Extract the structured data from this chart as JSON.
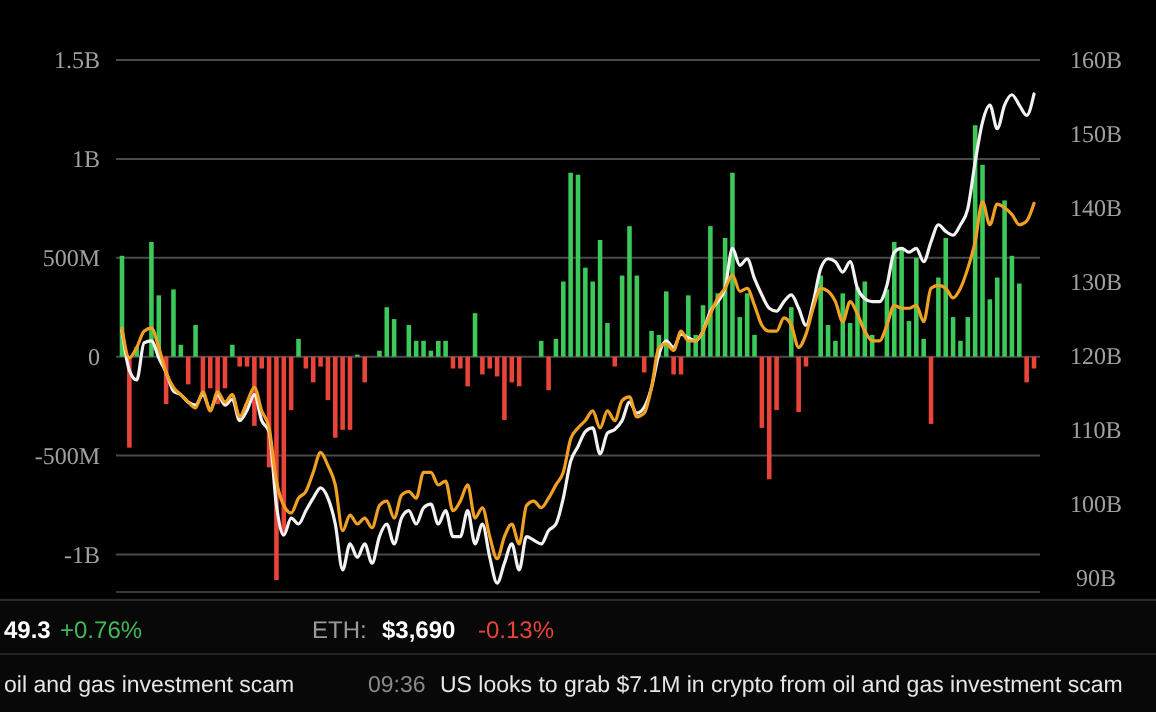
{
  "chart_data": {
    "type": "bar",
    "grid": "y",
    "categories": [
      null,
      null,
      null,
      null,
      null,
      null,
      null,
      null,
      null,
      null,
      null,
      null,
      null,
      null,
      null,
      null,
      null,
      null,
      null,
      null,
      null,
      null,
      null,
      null,
      null,
      null,
      null,
      null,
      null,
      null,
      null,
      null,
      null,
      null,
      null,
      null,
      null,
      null,
      null,
      null,
      null,
      null,
      null,
      null,
      null,
      null,
      null,
      null,
      null,
      null,
      null,
      null,
      null,
      null,
      null,
      null,
      null,
      null,
      null,
      null,
      null,
      null,
      null,
      null,
      null,
      null,
      null,
      null,
      null,
      null,
      null,
      null,
      null,
      null,
      null,
      null,
      null,
      null,
      null,
      null,
      null,
      null,
      null,
      null,
      null,
      null,
      null,
      null,
      null,
      null,
      null,
      null,
      null,
      null,
      null,
      null,
      null,
      null,
      null,
      null,
      null,
      null,
      null,
      null,
      null,
      null,
      null,
      null,
      null,
      null,
      null,
      null,
      null,
      null,
      null,
      null,
      null,
      null,
      null,
      null,
      null,
      null,
      null,
      null,
      null
    ],
    "ylim": [
      -1190000000.0,
      1500000000.0
    ],
    "yticks": [
      {
        "value": -1000000000.0,
        "label": "-1B"
      },
      {
        "value": -500000000.0,
        "label": "-500M"
      },
      0,
      {
        "value": 500000000.0,
        "label": "500M"
      },
      {
        "value": 1000000000.0,
        "label": "1B"
      },
      {
        "value": 1500000000.0,
        "label": "1.5B"
      }
    ],
    "y2lim": [
      88,
      160
    ],
    "y2ticks": [
      {
        "value": 90,
        "label": "90B"
      },
      {
        "value": 100,
        "label": "100B"
      },
      {
        "value": 110,
        "label": "110B"
      },
      {
        "value": 120,
        "label": "120B"
      },
      {
        "value": 130,
        "label": "130B"
      },
      {
        "value": 140,
        "label": "140B"
      },
      {
        "value": 150,
        "label": "150B"
      },
      {
        "value": 160,
        "label": "160B"
      }
    ],
    "series": [
      {
        "values": [
          510000000.0,
          -460000000.0,
          50000000.0,
          0,
          580000000.0,
          310000000.0,
          -240000000.0,
          340000000.0,
          60000000.0,
          -140000000.0,
          160000000.0,
          -190000000.0,
          -160000000.0,
          -240000000.0,
          -160000000.0,
          60000000.0,
          -50000000.0,
          -50000000.0,
          -350000000.0,
          -60000000.0,
          -560000000.0,
          -1130000000.0,
          -900000000.0,
          -270000000.0,
          90000000.0,
          -60000000.0,
          -130000000.0,
          -50000000.0,
          -220000000.0,
          -410000000.0,
          -370000000.0,
          -370000000.0,
          10000000.0,
          -130000000.0,
          0,
          30000000.0,
          250000000.0,
          190000000.0,
          0,
          160000000.0,
          80000000.0,
          80000000.0,
          30000000.0,
          80000000.0,
          80000000.0,
          -60000000.0,
          -60000000.0,
          -150000000.0,
          220000000.0,
          -90000000.0,
          -60000000.0,
          -100000000.0,
          -320000000.0,
          -130000000.0,
          -150000000.0,
          0,
          0,
          80000000.0,
          -170000000.0,
          90000000.0,
          380000000.0,
          930000000.0,
          920000000.0,
          450000000.0,
          380000000.0,
          590000000.0,
          170000000.0,
          -50000000.0,
          410000000.0,
          660000000.0,
          410000000.0,
          -80000000.0,
          130000000.0,
          110000000.0,
          330000000.0,
          -90000000.0,
          -90000000.0,
          310000000.0,
          110000000.0,
          260000000.0,
          660000000.0,
          320000000.0,
          600000000.0,
          930000000.0,
          200000000.0,
          320000000.0,
          110000000.0,
          -360000000.0,
          -620000000.0,
          -270000000.0,
          0,
          250000000.0,
          -280000000.0,
          -50000000.0,
          0,
          410000000.0,
          160000000.0,
          80000000.0,
          320000000.0,
          170000000.0,
          350000000.0,
          380000000.0,
          110000000.0,
          0,
          340000000.0,
          580000000.0,
          540000000.0,
          180000000.0,
          500000000.0,
          90000000.0,
          -340000000.0,
          400000000.0,
          600000000.0,
          200000000.0,
          80000000.0,
          200000000.0,
          1170000000.0,
          970000000.0,
          290000000.0,
          400000000.0,
          790000000.0,
          510000000.0,
          370000000.0,
          -130000000.0,
          -60000000.0
        ],
        "colors": [
          "#3dc85a",
          "#e8443a",
          "#3dc85a",
          "#3dc85a",
          "#3dc85a",
          "#3dc85a",
          "#e8443a",
          "#3dc85a",
          "#3dc85a",
          "#e8443a",
          "#3dc85a",
          "#e8443a",
          "#e8443a",
          "#e8443a",
          "#e8443a",
          "#3dc85a",
          "#e8443a",
          "#e8443a",
          "#e8443a",
          "#e8443a",
          "#e8443a",
          "#e8443a",
          "#e8443a",
          "#e8443a",
          "#3dc85a",
          "#e8443a",
          "#e8443a",
          "#e8443a",
          "#e8443a",
          "#e8443a",
          "#e8443a",
          "#e8443a",
          "#3dc85a",
          "#e8443a",
          "#3dc85a",
          "#3dc85a",
          "#3dc85a",
          "#3dc85a",
          "#3dc85a",
          "#3dc85a",
          "#3dc85a",
          "#3dc85a",
          "#3dc85a",
          "#3dc85a",
          "#3dc85a",
          "#e8443a",
          "#e8443a",
          "#e8443a",
          "#3dc85a",
          "#e8443a",
          "#e8443a",
          "#e8443a",
          "#e8443a",
          "#e8443a",
          "#e8443a",
          "#3dc85a",
          "#3dc85a",
          "#3dc85a",
          "#e8443a",
          "#3dc85a",
          "#3dc85a",
          "#3dc85a",
          "#3dc85a",
          "#3dc85a",
          "#3dc85a",
          "#3dc85a",
          "#3dc85a",
          "#e8443a",
          "#3dc85a",
          "#3dc85a",
          "#3dc85a",
          "#e8443a",
          "#3dc85a",
          "#3dc85a",
          "#3dc85a",
          "#e8443a",
          "#e8443a",
          "#3dc85a",
          "#3dc85a",
          "#3dc85a",
          "#3dc85a",
          "#3dc85a",
          "#3dc85a",
          "#3dc85a",
          "#3dc85a",
          "#3dc85a",
          "#3dc85a",
          "#e8443a",
          "#e8443a",
          "#e8443a",
          "#3dc85a",
          "#3dc85a",
          "#e8443a",
          "#e8443a",
          "#3dc85a",
          "#3dc85a",
          "#3dc85a",
          "#3dc85a",
          "#3dc85a",
          "#3dc85a",
          "#3dc85a",
          "#3dc85a",
          "#3dc85a",
          "#3dc85a",
          "#3dc85a",
          "#3dc85a",
          "#3dc85a",
          "#3dc85a",
          "#3dc85a",
          "#3dc85a",
          "#e8443a",
          "#3dc85a",
          "#3dc85a",
          "#3dc85a",
          "#3dc85a",
          "#3dc85a",
          "#3dc85a",
          "#3dc85a",
          "#3dc85a",
          "#3dc85a",
          "#3dc85a",
          "#3dc85a",
          "#3dc85a",
          "#e8443a",
          "#e8443a"
        ]
      },
      {
        "type": "line",
        "axis": "y2",
        "color": "#f2f2f2",
        "values": [
          123.4,
          118,
          116.7,
          121.7,
          122,
          119.7,
          117.7,
          115.2,
          114.7,
          113.7,
          113.3,
          114.7,
          112.7,
          114.7,
          113.3,
          114.1,
          111.2,
          112.6,
          114.7,
          111.2,
          109.7,
          99.7,
          95.7,
          98,
          97.2,
          99,
          100.7,
          102.1,
          100.7,
          97.2,
          91,
          94.5,
          92.7,
          94.5,
          91.9,
          95.5,
          97.2,
          94.5,
          98,
          99,
          97.2,
          99.4,
          99.9,
          97.2,
          99,
          95.5,
          95.5,
          99,
          94.5,
          97.2,
          92.7,
          89.2,
          91.9,
          94.5,
          91,
          95.5,
          95,
          94.5,
          96.3,
          97.2,
          100.7,
          105.7,
          107.7,
          109.7,
          110.2,
          106.7,
          109.5,
          110,
          111.2,
          113.7,
          112.2,
          113,
          115.7,
          120.2,
          122,
          121.1,
          122.9,
          122.4,
          122,
          123.3,
          126,
          127.3,
          129.1,
          134.5,
          132.2,
          133.1,
          130.4,
          128.2,
          126.4,
          126,
          127.3,
          128.2,
          126.4,
          124.1,
          127.3,
          131.8,
          133.1,
          132.7,
          131.3,
          132.7,
          129.1,
          127.7,
          127.3,
          127.3,
          129.5,
          134,
          134.5,
          134,
          134.5,
          132.7,
          135.4,
          137.7,
          136.8,
          136.3,
          137.7,
          139.9,
          146.2,
          151.6,
          153.9,
          150.7,
          153.9,
          155.3,
          153.9,
          152.5,
          155.4
        ]
      },
      {
        "type": "line",
        "axis": "y2",
        "color": "#f0a022",
        "values": [
          123.7,
          119.7,
          121.1,
          123.3,
          123.7,
          121.1,
          117.7,
          115.7,
          114.7,
          113.7,
          112.9,
          115.1,
          112.5,
          115.1,
          113.7,
          114.7,
          111.7,
          113.7,
          115.7,
          112.5,
          110.2,
          103,
          99.7,
          98.7,
          100.7,
          101.6,
          104.2,
          106.9,
          105.1,
          102.5,
          96.3,
          98.4,
          97.2,
          98,
          96.7,
          99.7,
          100.3,
          98,
          101.1,
          101.6,
          100.7,
          104.2,
          104.2,
          102.5,
          103,
          99,
          100.3,
          102.5,
          98,
          99.4,
          95.5,
          92.5,
          95.5,
          97.2,
          94.5,
          99.7,
          100.3,
          99.4,
          100.7,
          102.5,
          104.2,
          108.7,
          110.2,
          111.2,
          112.5,
          110.2,
          112.5,
          111.2,
          113.9,
          114.4,
          111.7,
          112.2,
          115.7,
          121.1,
          121.6,
          120.7,
          123.3,
          122,
          122,
          123.3,
          125.6,
          127.8,
          129.1,
          130.9,
          128.7,
          129.1,
          126.8,
          124.1,
          123.3,
          123.3,
          125.1,
          124.1,
          121.1,
          122.9,
          126.5,
          129.1,
          128.7,
          127.3,
          124.6,
          127.3,
          125.6,
          123.3,
          122,
          122,
          124.1,
          126.8,
          126.4,
          126.4,
          126.8,
          124.6,
          129.1,
          129.5,
          129.1,
          127.8,
          129.1,
          131.8,
          135.4,
          140.8,
          137.7,
          140.5,
          140,
          139.1,
          137.7,
          138.2,
          140.6
        ]
      }
    ],
    "annotations": [
      "49.3",
      "+0.76%",
      "ETH:",
      "$3,690",
      "-0.13%",
      "oil and gas investment scam",
      "09:36",
      "US looks to grab $7.1M in crypto from oil and gas investment scam"
    ]
  }
}
